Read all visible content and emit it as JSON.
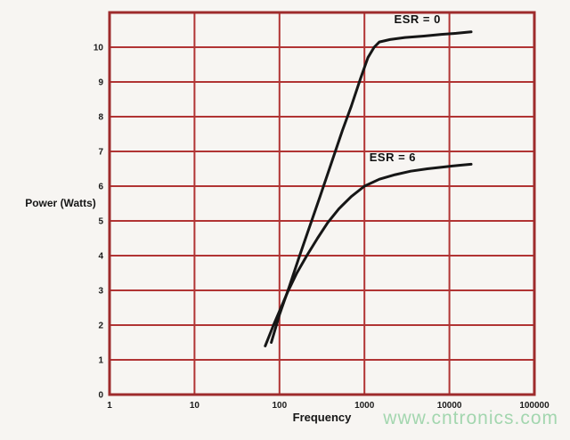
{
  "watermark": {
    "text": "www.cntronics.com",
    "color": "#a3d6af"
  },
  "colors": {
    "background": "#f7f5f2",
    "grid": "#b13434",
    "border": "#9e2b2c",
    "curve": "#161616",
    "text": "#1b1b1b"
  },
  "chart_data": {
    "type": "line",
    "title": "",
    "xlabel": "Frequency",
    "ylabel": "Power (Watts)",
    "x_scale": "log",
    "xlim": [
      1,
      100000
    ],
    "ylim": [
      0,
      11
    ],
    "grid": true,
    "legend_position": "inline-annotations",
    "x_ticks": [
      1,
      10,
      100,
      1000,
      10000,
      100000
    ],
    "x_tick_labels": [
      "1",
      "10",
      "100",
      "1000",
      "10000",
      "100000"
    ],
    "y_ticks": [
      0,
      1,
      2,
      3,
      4,
      5,
      6,
      7,
      8,
      9,
      10
    ],
    "y_tick_labels": [
      "0",
      "1",
      "2",
      "3",
      "4",
      "5",
      "6",
      "7",
      "8",
      "9",
      "10"
    ],
    "series": [
      {
        "name": "ESR = 0",
        "points": [
          [
            80,
            1.5
          ],
          [
            100,
            2.3
          ],
          [
            130,
            3.1
          ],
          [
            170,
            3.95
          ],
          [
            220,
            4.75
          ],
          [
            300,
            5.7
          ],
          [
            400,
            6.6
          ],
          [
            550,
            7.6
          ],
          [
            700,
            8.3
          ],
          [
            900,
            9.1
          ],
          [
            1100,
            9.7
          ],
          [
            1300,
            10.0
          ],
          [
            1500,
            10.15
          ],
          [
            2000,
            10.22
          ],
          [
            3000,
            10.28
          ],
          [
            5000,
            10.32
          ],
          [
            8000,
            10.37
          ],
          [
            12000,
            10.4
          ],
          [
            18000,
            10.44
          ]
        ]
      },
      {
        "name": "ESR = 6",
        "points": [
          [
            68,
            1.4
          ],
          [
            85,
            2.0
          ],
          [
            100,
            2.4
          ],
          [
            125,
            2.95
          ],
          [
            160,
            3.5
          ],
          [
            210,
            4.0
          ],
          [
            280,
            4.5
          ],
          [
            370,
            4.95
          ],
          [
            500,
            5.35
          ],
          [
            700,
            5.7
          ],
          [
            1000,
            6.0
          ],
          [
            1500,
            6.2
          ],
          [
            2300,
            6.33
          ],
          [
            3500,
            6.43
          ],
          [
            5500,
            6.5
          ],
          [
            9000,
            6.56
          ],
          [
            13000,
            6.6
          ],
          [
            18000,
            6.63
          ]
        ]
      }
    ],
    "annotations": [
      {
        "text": "ESR = 0",
        "x": 4200,
        "y": 10.8
      },
      {
        "text": "ESR = 6",
        "x": 2150,
        "y": 6.82
      }
    ]
  }
}
